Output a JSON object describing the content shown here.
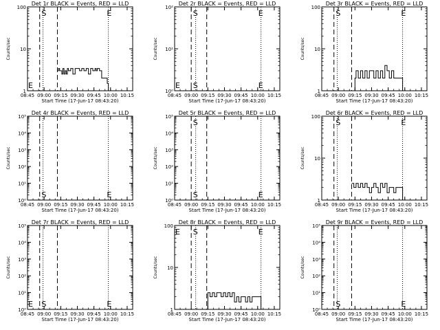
{
  "figure": {
    "xtick_labels": [
      "08:45",
      "09:00",
      "09:15",
      "09:30",
      "09:45",
      "10:00",
      "10:15"
    ],
    "xlabel": "Start Time (17-Jun-17 08:43:20)",
    "ylabel": "Counts/sec",
    "marker_start": "S",
    "marker_end": "E"
  },
  "chart_data": [
    {
      "type": "line",
      "title": "Det 1r BLACK = Events, RED = LLD",
      "xlim": [
        "08:45",
        "10:20"
      ],
      "yscale": "log",
      "ylim": [
        1,
        100
      ],
      "yticks": [
        "1",
        "10",
        "100"
      ],
      "dashed_lines": [
        "08:56",
        "09:12"
      ],
      "dotted_lines": [
        "08:59",
        "09:58"
      ],
      "markers": [
        {
          "label": "S",
          "time": "08:57",
          "level": "top"
        },
        {
          "label": "E",
          "time": "09:56",
          "level": "top"
        },
        {
          "label": "E",
          "time": "08:45",
          "level": "bottom"
        }
      ],
      "series": [
        {
          "x": [
            "09:12",
            "09:13",
            "09:14",
            "09:16",
            "09:17",
            "09:18",
            "09:19",
            "09:20",
            "09:21",
            "09:22",
            "09:24",
            "09:26",
            "09:28",
            "09:30",
            "09:32",
            "09:34",
            "09:36",
            "09:38",
            "09:40",
            "09:42",
            "09:44",
            "09:46",
            "09:47",
            "09:48",
            "09:50",
            "09:52",
            "09:54",
            "09:56",
            "09:57",
            "09:58"
          ],
          "values": [
            3,
            3.4,
            3,
            2.5,
            3.4,
            2.5,
            3,
            2.5,
            3.4,
            3,
            3.4,
            2.5,
            3.4,
            3.4,
            3,
            3.4,
            3,
            3.4,
            2.5,
            3.4,
            3,
            3.4,
            3,
            3.4,
            3,
            2,
            2,
            2,
            1.5,
            1
          ]
        }
      ]
    },
    {
      "type": "line",
      "title": "Det 2r BLACK = Events, RED = LLD",
      "xlim": [
        "08:45",
        "10:20"
      ],
      "yscale": "log",
      "ylim": [
        1,
        100
      ],
      "yticks": [
        "10⁰",
        "10¹",
        "10²"
      ],
      "dashed_lines": [
        "09:00",
        "09:14"
      ],
      "dotted_lines": [
        "09:04",
        "10:03"
      ],
      "markers": [
        {
          "label": "S",
          "time": "09:01",
          "level": "top"
        },
        {
          "label": "E",
          "time": "10:00",
          "level": "top"
        },
        {
          "label": "E",
          "time": "08:45",
          "level": "bottom"
        },
        {
          "label": "S",
          "time": "09:01",
          "level": "bottom"
        },
        {
          "label": "E",
          "time": "10:00",
          "level": "bottom"
        }
      ],
      "series": []
    },
    {
      "type": "line",
      "title": "Det 3r BLACK = Events, RED = LLD",
      "xlim": [
        "08:45",
        "10:20"
      ],
      "yscale": "log",
      "ylim": [
        1,
        100
      ],
      "yticks": [
        "1",
        "10",
        "100"
      ],
      "dashed_lines": [
        "08:56",
        "09:12"
      ],
      "dotted_lines": [
        "08:59",
        "09:58"
      ],
      "markers": [
        {
          "label": "S",
          "time": "08:57",
          "level": "top"
        },
        {
          "label": "E",
          "time": "09:56",
          "level": "top"
        }
      ],
      "series": [
        {
          "x": [
            "09:14",
            "09:15",
            "09:16",
            "09:18",
            "09:20",
            "09:22",
            "09:24",
            "09:26",
            "09:28",
            "09:30",
            "09:32",
            "09:34",
            "09:36",
            "09:38",
            "09:40",
            "09:42",
            "09:44",
            "09:46",
            "09:48",
            "09:50",
            "09:52",
            "09:54",
            "09:56",
            "09:58"
          ],
          "values": [
            1,
            2,
            3,
            2,
            3,
            2,
            3,
            2,
            3,
            3,
            2,
            3,
            2,
            3,
            2,
            4,
            3,
            2,
            3,
            2,
            2,
            2,
            2,
            1
          ]
        }
      ]
    },
    {
      "type": "line",
      "title": "Det 4r BLACK = Events, RED = LLD",
      "xlim": [
        "08:45",
        "10:20"
      ],
      "yscale": "log",
      "ylim": [
        1,
        100000
      ],
      "yticks": [
        "10⁰",
        "10¹",
        "10²",
        "10³",
        "10⁴",
        "10⁵"
      ],
      "dashed_lines": [
        "08:56",
        "09:12"
      ],
      "dotted_lines": [
        "08:59",
        "09:58"
      ],
      "markers": [
        {
          "label": "S",
          "time": "08:57",
          "level": "bottom"
        },
        {
          "label": "E",
          "time": "09:56",
          "level": "bottom"
        }
      ],
      "series": []
    },
    {
      "type": "line",
      "title": "Det 5r BLACK = Events, RED = LLD",
      "xlim": [
        "08:45",
        "10:20"
      ],
      "yscale": "log",
      "ylim": [
        1,
        100000
      ],
      "yticks": [
        "10⁰",
        "10¹",
        "10²",
        "10³",
        "10⁴",
        "10⁵"
      ],
      "dashed_lines": [
        "09:00",
        "09:14"
      ],
      "dotted_lines": [
        "09:04",
        "10:03"
      ],
      "markers": [
        {
          "label": "S",
          "time": "09:01",
          "level": "top"
        },
        {
          "label": "S",
          "time": "09:01",
          "level": "bottom"
        },
        {
          "label": "E",
          "time": "10:00",
          "level": "bottom"
        }
      ],
      "series": []
    },
    {
      "type": "line",
      "title": "Det 6r BLACK = Events, RED = LLD",
      "xlim": [
        "08:45",
        "10:20"
      ],
      "yscale": "log",
      "ylim": [
        1,
        100
      ],
      "yticks": [
        "1",
        "10",
        "100"
      ],
      "dashed_lines": [
        "08:56",
        "09:12"
      ],
      "dotted_lines": [
        "08:59",
        "09:58"
      ],
      "markers": [
        {
          "label": "S",
          "time": "08:57",
          "level": "top"
        },
        {
          "label": "E",
          "time": "09:56",
          "level": "top"
        }
      ],
      "series": [
        {
          "x": [
            "09:12",
            "09:14",
            "09:16",
            "09:18",
            "09:20",
            "09:22",
            "09:24",
            "09:26",
            "09:28",
            "09:30",
            "09:32",
            "09:34",
            "09:36",
            "09:38",
            "09:40",
            "09:42",
            "09:44",
            "09:46",
            "09:48",
            "09:50",
            "09:52",
            "09:54",
            "09:56",
            "09:58"
          ],
          "values": [
            2.5,
            2,
            2.5,
            2,
            2.5,
            2,
            2.5,
            2,
            1.5,
            2,
            2.5,
            2,
            1.5,
            2.5,
            2,
            2.5,
            1.5,
            2,
            2,
            1.5,
            2,
            2,
            2,
            1
          ]
        }
      ]
    },
    {
      "type": "line",
      "title": "Det 7r BLACK = Events, RED = LLD",
      "xlim": [
        "08:45",
        "10:20"
      ],
      "yscale": "log",
      "ylim": [
        1,
        100000
      ],
      "yticks": [
        "10⁰",
        "10¹",
        "10²",
        "10³",
        "10⁴",
        "10⁵"
      ],
      "dashed_lines": [
        "08:56",
        "09:12"
      ],
      "dotted_lines": [
        "08:59",
        "09:58"
      ],
      "markers": [
        {
          "label": "E",
          "time": "08:45",
          "level": "bottom"
        },
        {
          "label": "S",
          "time": "08:57",
          "level": "bottom"
        },
        {
          "label": "E",
          "time": "09:56",
          "level": "bottom"
        }
      ],
      "series": []
    },
    {
      "type": "line",
      "title": "Det 8r BLACK = Events, RED = LLD",
      "xlim": [
        "08:45",
        "10:20"
      ],
      "yscale": "log",
      "ylim": [
        1,
        100
      ],
      "yticks": [
        "1",
        "10",
        "100"
      ],
      "dashed_lines": [
        "09:00",
        "09:14"
      ],
      "dotted_lines": [
        "09:04",
        "10:03"
      ],
      "markers": [
        {
          "label": "E",
          "time": "08:45",
          "level": "top"
        },
        {
          "label": "S",
          "time": "09:01",
          "level": "top"
        },
        {
          "label": "E",
          "time": "10:00",
          "level": "top"
        }
      ],
      "series": [
        {
          "x": [
            "09:14",
            "09:15",
            "09:17",
            "09:19",
            "09:21",
            "09:23",
            "09:25",
            "09:27",
            "09:29",
            "09:31",
            "09:33",
            "09:35",
            "09:37",
            "09:39",
            "09:41",
            "09:43",
            "09:45",
            "09:47",
            "09:49",
            "09:51",
            "09:53",
            "09:55",
            "09:57",
            "09:59",
            "10:01",
            "10:03"
          ],
          "values": [
            1,
            2.5,
            2,
            2.5,
            2,
            2.5,
            2.5,
            2,
            2.5,
            2,
            2.5,
            2,
            2.5,
            1.5,
            2,
            1.5,
            2,
            2,
            1.5,
            2,
            1.5,
            2,
            2,
            2,
            2,
            1
          ]
        }
      ]
    },
    {
      "type": "line",
      "title": "Det 9r BLACK = Events, RED = LLD",
      "xlim": [
        "08:45",
        "10:20"
      ],
      "yscale": "log",
      "ylim": [
        1,
        100000
      ],
      "yticks": [
        "10⁰",
        "10¹",
        "10²",
        "10³",
        "10⁴",
        "10⁵"
      ],
      "dashed_lines": [
        "08:56",
        "09:12"
      ],
      "dotted_lines": [
        "08:59",
        "09:58"
      ],
      "markers": [
        {
          "label": "S",
          "time": "08:57",
          "level": "bottom"
        },
        {
          "label": "E",
          "time": "09:56",
          "level": "bottom"
        }
      ],
      "series": []
    }
  ]
}
